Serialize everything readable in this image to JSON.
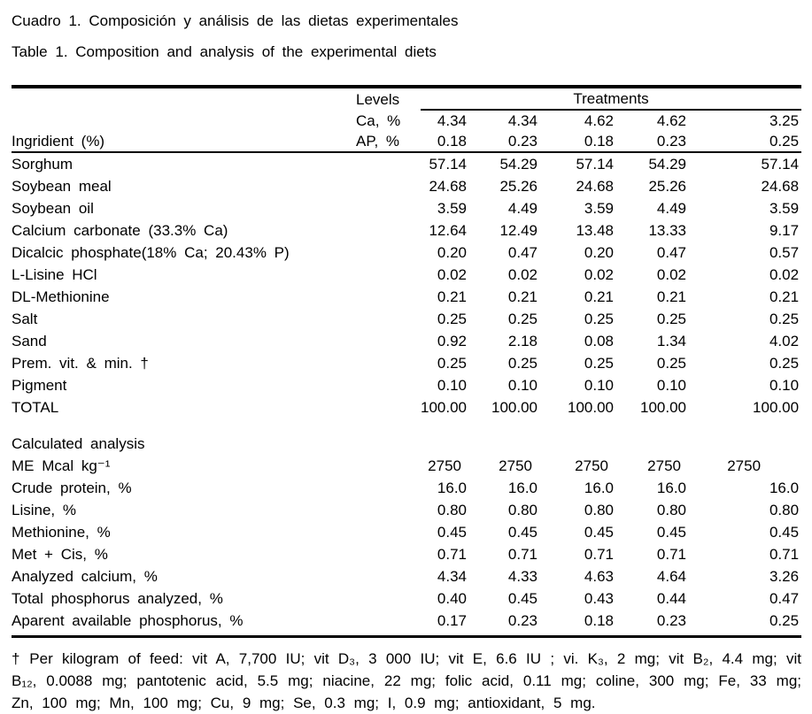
{
  "page": {
    "title_es": "Cuadro 1. Composición y análisis de las dietas experimentales",
    "title_en": "Table 1. Composition and analysis of the experimental diets"
  },
  "table": {
    "levels_header": "Levels",
    "treatments_header": "Treatments",
    "row_label_header": "Ingridient (%)",
    "level_rows": [
      {
        "label": "Ca, %",
        "values": [
          "4.34",
          "4.34",
          "4.62",
          "4.62",
          "3.25"
        ]
      },
      {
        "label": "AP, %",
        "values": [
          "0.18",
          "0.23",
          "0.18",
          "0.23",
          "0.25"
        ]
      }
    ],
    "ingredient_rows": [
      {
        "label": "Sorghum",
        "values": [
          "57.14",
          "54.29",
          "57.14",
          "54.29",
          "57.14"
        ]
      },
      {
        "label": "Soybean meal",
        "values": [
          "24.68",
          "25.26",
          "24.68",
          "25.26",
          "24.68"
        ]
      },
      {
        "label": "Soybean oil",
        "values": [
          "3.59",
          "4.49",
          "3.59",
          "4.49",
          "3.59"
        ]
      },
      {
        "label": "Calcium carbonate (33.3% Ca)",
        "values": [
          "12.64",
          "12.49",
          "13.48",
          "13.33",
          "9.17"
        ]
      },
      {
        "label": "Dicalcic phosphate(18% Ca; 20.43% P)",
        "values": [
          "0.20",
          "0.47",
          "0.20",
          "0.47",
          "0.57"
        ]
      },
      {
        "label": "L-Lisine HCl",
        "values": [
          "0.02",
          "0.02",
          "0.02",
          "0.02",
          "0.02"
        ]
      },
      {
        "label": "DL-Methionine",
        "values": [
          "0.21",
          "0.21",
          "0.21",
          "0.21",
          "0.21"
        ]
      },
      {
        "label": "Salt",
        "values": [
          "0.25",
          "0.25",
          "0.25",
          "0.25",
          "0.25"
        ]
      },
      {
        "label": "Sand",
        "values": [
          "0.92",
          "2.18",
          "0.08",
          "1.34",
          "4.02"
        ]
      },
      {
        "label": "Prem. vit. & min. †",
        "values": [
          "0.25",
          "0.25",
          "0.25",
          "0.25",
          "0.25"
        ]
      },
      {
        "label": "Pigment",
        "values": [
          "0.10",
          "0.10",
          "0.10",
          "0.10",
          "0.10"
        ]
      },
      {
        "label": "TOTAL",
        "values": [
          "100.00",
          "100.00",
          "100.00",
          "100.00",
          "100.00"
        ]
      }
    ],
    "analysis_section_label": "Calculated analysis",
    "analysis_rows": [
      {
        "label": "ME Mcal kg⁻¹",
        "values": [
          "2750",
          "2750",
          "2750",
          "2750",
          "2750"
        ],
        "shift_values": true
      },
      {
        "label": "Crude protein, %",
        "values": [
          "16.0",
          "16.0",
          "16.0",
          "16.0",
          "16.0"
        ]
      },
      {
        "label": "Lisine, %",
        "values": [
          "0.80",
          "0.80",
          "0.80",
          "0.80",
          "0.80"
        ]
      },
      {
        "label": "Methionine, %",
        "values": [
          "0.45",
          "0.45",
          "0.45",
          "0.45",
          "0.45"
        ]
      },
      {
        "label": "Met + Cis, %",
        "values": [
          "0.71",
          "0.71",
          "0.71",
          "0.71",
          "0.71"
        ]
      },
      {
        "label": "Analyzed calcium, %",
        "values": [
          "4.34",
          "4.33",
          "4.63",
          "4.64",
          "3.26"
        ]
      },
      {
        "label": "Total phosphorus analyzed, %",
        "values": [
          "0.40",
          "0.45",
          "0.43",
          "0.44",
          "0.47"
        ]
      },
      {
        "label": "Aparent available phosphorus, %",
        "values": [
          "0.17",
          "0.23",
          "0.18",
          "0.23",
          "0.25"
        ]
      }
    ]
  },
  "footnote": "† Per kilogram of feed: vit A, 7,700 IU; vit D₃, 3 000 IU; vit E, 6.6 IU ; vi. K₃, 2 mg; vit B₂, 4.4 mg; vit B₁₂, 0.0088 mg; pantotenic acid, 5.5 mg; niacine, 22 mg; folic acid, 0.11 mg; coline, 300 mg; Fe, 33 mg; Zn, 100 mg; Mn, 100 mg; Cu, 9 mg; Se, 0.3 mg; I, 0.9 mg; antioxidant, 5 mg.",
  "colors": {
    "text": "#000000",
    "background": "#ffffff",
    "rule": "#000000"
  }
}
